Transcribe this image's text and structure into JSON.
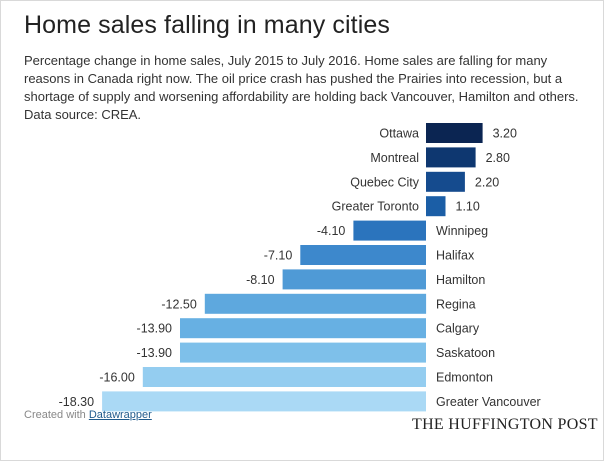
{
  "header": {
    "title": "Home sales falling in many cities",
    "description": "Percentage change in home sales, July 2015 to July 2016. Home sales are falling for many reasons in Canada right now. The oil price crash has pushed the Prairies into recession, but a shortage of supply and worsening affordability are holding back Vancouver, Hamilton and others. Data source: CREA."
  },
  "footer": {
    "created_with": "Created with",
    "tool_link": "Datawrapper",
    "brand": "THE HUFFINGTON POST"
  },
  "colors": {
    "bar_shades": [
      "#0b2552",
      "#0e3770",
      "#154b8e",
      "#1b5ea6",
      "#2b74bd",
      "#3d88cc",
      "#4f9ad6",
      "#5ea8de",
      "#67b0e3",
      "#7ec0ea",
      "#94cdf0",
      "#aad9f5"
    ],
    "text": "#333333"
  },
  "chart_data": {
    "type": "bar",
    "orientation": "horizontal",
    "categories": [
      "Ottawa",
      "Montreal",
      "Quebec City",
      "Greater Toronto",
      "Winnipeg",
      "Halifax",
      "Hamilton",
      "Regina",
      "Calgary",
      "Saskatoon",
      "Edmonton",
      "Greater Vancouver"
    ],
    "values": [
      3.2,
      2.8,
      2.2,
      1.1,
      -4.1,
      -7.1,
      -8.1,
      -12.5,
      -13.9,
      -13.9,
      -16.0,
      -18.3
    ],
    "value_labels": [
      "3.20",
      "2.80",
      "2.20",
      "1.10",
      "-4.10",
      "-7.10",
      "-8.10",
      "-12.50",
      "-13.90",
      "-13.90",
      "-16.00",
      "-18.30"
    ],
    "xlim": [
      -18.3,
      3.2
    ],
    "grid": false,
    "legend": "none"
  }
}
